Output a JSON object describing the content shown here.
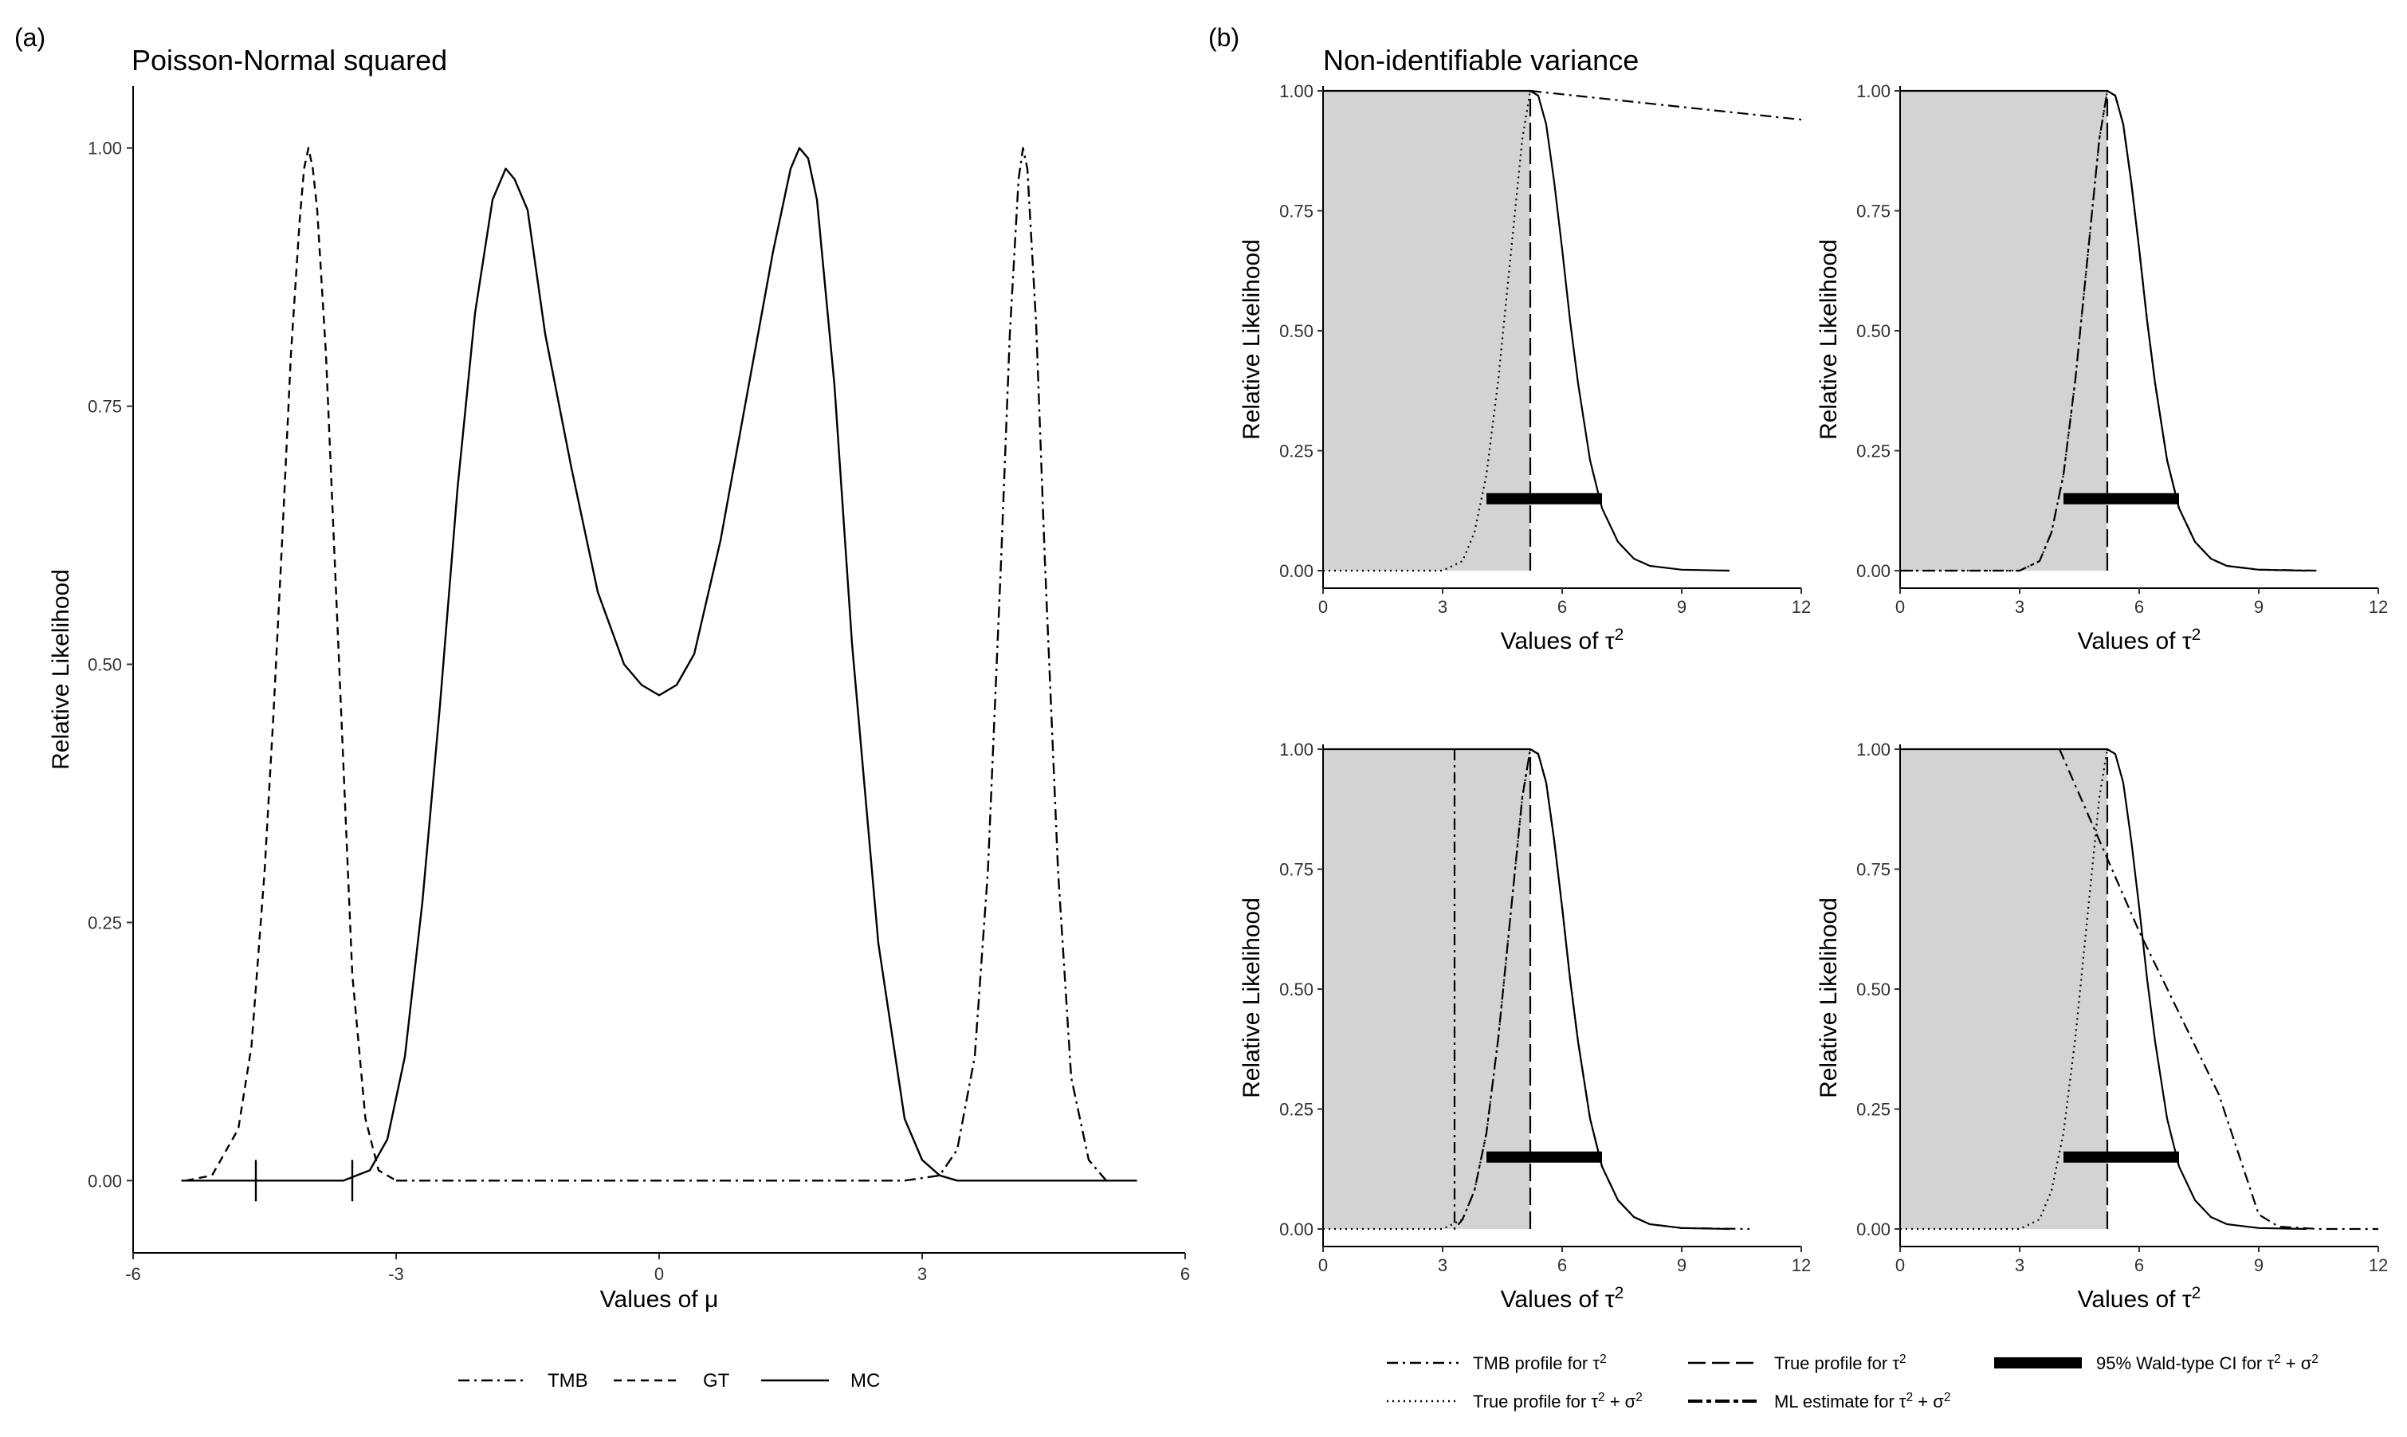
{
  "panel_a": {
    "tag": "(a)",
    "legend": [
      {
        "label": "TMB",
        "dash": "dotdash"
      },
      {
        "label": "GT",
        "dash": "dashed"
      },
      {
        "label": "MC",
        "dash": "solid"
      }
    ]
  },
  "panel_b": {
    "tag": "(b)",
    "title": "Non-identifiable variance",
    "legend": [
      {
        "label": "TMB profile for τ²",
        "dash": "dotdash"
      },
      {
        "label": "True profile for τ²",
        "dash": "longdash"
      },
      {
        "label": "95% Wald-type CI for τ² + σ²",
        "dash": "thick"
      },
      {
        "label": "True profile for τ² + σ²",
        "dash": "dotted"
      },
      {
        "label": "ML estimate for τ² + σ²",
        "dash": "twodash"
      }
    ]
  },
  "chart_data": [
    {
      "type": "line",
      "panel": "a",
      "title": "Poisson-Normal squared",
      "xlabel": "Values of μ",
      "ylabel": "Relative Likelihood",
      "xlim": [
        -6,
        6
      ],
      "ylim": [
        -0.07,
        1.06
      ],
      "xticks": [
        -6,
        -3,
        0,
        3,
        6
      ],
      "xtick_labels": [
        "-6",
        "-3",
        "0",
        "3",
        "6"
      ],
      "yticks": [
        0,
        0.25,
        0.5,
        0.75,
        1
      ],
      "ytick_labels": [
        "0.00",
        "0.25",
        "0.50",
        "0.75",
        "1.00"
      ],
      "series": [
        {
          "name": "TMB",
          "dash": "dotdash",
          "x": [
            -3.0,
            -1.0,
            1.0,
            2.8,
            3.2,
            3.4,
            3.6,
            3.75,
            3.9,
            4.0,
            4.1,
            4.15,
            4.2,
            4.3,
            4.4,
            4.55,
            4.7,
            4.9,
            5.1
          ],
          "y": [
            0,
            0,
            0,
            0,
            0.005,
            0.03,
            0.12,
            0.3,
            0.6,
            0.82,
            0.97,
            1.0,
            0.98,
            0.83,
            0.6,
            0.3,
            0.1,
            0.02,
            0
          ]
        },
        {
          "name": "GT",
          "dash": "dashed",
          "x": [
            -5.4,
            -5.1,
            -4.8,
            -4.65,
            -4.5,
            -4.4,
            -4.3,
            -4.2,
            -4.1,
            -4.05,
            -4.0,
            -3.95,
            -3.9,
            -3.8,
            -3.7,
            -3.6,
            -3.5,
            -3.35,
            -3.2,
            -3.0
          ],
          "y": [
            0,
            0.005,
            0.05,
            0.13,
            0.3,
            0.45,
            0.62,
            0.8,
            0.93,
            0.98,
            1.0,
            0.98,
            0.94,
            0.8,
            0.6,
            0.4,
            0.2,
            0.06,
            0.01,
            0
          ]
        },
        {
          "name": "MC",
          "dash": "solid",
          "x": [
            -5.45,
            -3.6,
            -3.3,
            -3.1,
            -2.9,
            -2.7,
            -2.5,
            -2.3,
            -2.1,
            -1.9,
            -1.75,
            -1.65,
            -1.5,
            -1.3,
            -1.0,
            -0.7,
            -0.4,
            -0.2,
            0,
            0.2,
            0.4,
            0.7,
            1.0,
            1.3,
            1.5,
            1.6,
            1.7,
            1.8,
            2.0,
            2.2,
            2.5,
            2.8,
            3.0,
            3.2,
            3.4,
            3.6,
            4.0,
            5.45
          ],
          "y": [
            0,
            0,
            0.01,
            0.04,
            0.12,
            0.27,
            0.46,
            0.67,
            0.84,
            0.95,
            0.98,
            0.97,
            0.94,
            0.82,
            0.69,
            0.57,
            0.5,
            0.48,
            0.47,
            0.48,
            0.51,
            0.62,
            0.76,
            0.9,
            0.98,
            1.0,
            0.99,
            0.95,
            0.77,
            0.52,
            0.23,
            0.06,
            0.02,
            0.005,
            0,
            0,
            0,
            0
          ]
        }
      ],
      "marks": [
        {
          "x": -4.6
        },
        {
          "x": -3.5
        }
      ]
    },
    {
      "type": "line",
      "panel": "b1",
      "xlabel": "Values of τ²",
      "ylabel": "Relative Likelihood",
      "xlim": [
        0,
        12
      ],
      "ylim": [
        0,
        1
      ],
      "xticks": [
        0,
        3,
        6,
        9,
        12
      ],
      "xtick_labels": [
        "0",
        "3",
        "6",
        "9",
        "12"
      ],
      "yticks": [
        0,
        0.25,
        0.5,
        0.75,
        1
      ],
      "ytick_labels": [
        "0.00",
        "0.25",
        "0.50",
        "0.75",
        "1.00"
      ],
      "shade": [
        0,
        5.2
      ],
      "series": [
        {
          "name": "TMB profile for τ²",
          "dash": "dotdash",
          "x": [
            5.2,
            12
          ],
          "y": [
            1.0,
            0.94
          ]
        },
        {
          "name": "True profile for τ² + σ²",
          "dash": "dotted",
          "x": [
            0,
            3.0,
            3.5,
            3.8,
            4.1,
            4.4,
            4.7,
            5.0,
            5.2
          ],
          "y": [
            0,
            0,
            0.02,
            0.08,
            0.2,
            0.4,
            0.65,
            0.9,
            1.0
          ]
        },
        {
          "name": "True profile for τ²",
          "dash": "solid",
          "x": [
            0,
            5.2,
            5.4,
            5.6,
            5.8,
            6.0,
            6.2,
            6.4,
            6.7,
            7.0,
            7.4,
            7.8,
            8.2,
            9.0,
            10.2
          ],
          "y": [
            1.0,
            1.0,
            0.99,
            0.93,
            0.81,
            0.67,
            0.52,
            0.39,
            0.23,
            0.13,
            0.06,
            0.025,
            0.01,
            0.002,
            0
          ]
        },
        {
          "name": "ML estimate for τ² + σ²",
          "dash": "longdash",
          "x": [
            5.2,
            5.2
          ],
          "y": [
            0,
            1.0
          ]
        }
      ],
      "ci": [
        4.1,
        7.0
      ],
      "ci_y": 0.15
    },
    {
      "type": "line",
      "panel": "b2",
      "xlabel": "Values of τ²",
      "ylabel": "Relative Likelihood",
      "xlim": [
        0,
        12
      ],
      "ylim": [
        0,
        1
      ],
      "xticks": [
        0,
        3,
        6,
        9,
        12
      ],
      "xtick_labels": [
        "0",
        "3",
        "6",
        "9",
        "12"
      ],
      "yticks": [
        0,
        0.25,
        0.5,
        0.75,
        1
      ],
      "ytick_labels": [
        "0.00",
        "0.25",
        "0.50",
        "0.75",
        "1.00"
      ],
      "shade": [
        0,
        5.2
      ],
      "series": [
        {
          "name": "TMB profile for τ²",
          "dash": "dotdash",
          "x": [
            0,
            3.0,
            3.5,
            3.8,
            4.1,
            4.4,
            4.7,
            5.0,
            5.2,
            5.4,
            5.6,
            5.8,
            6.0,
            6.2,
            6.4,
            6.7,
            7.0,
            7.4,
            7.8,
            8.2,
            9.0,
            10.5
          ],
          "y": [
            0,
            0,
            0.02,
            0.08,
            0.2,
            0.4,
            0.65,
            0.9,
            1.0,
            0.99,
            0.93,
            0.81,
            0.67,
            0.52,
            0.39,
            0.23,
            0.13,
            0.06,
            0.025,
            0.01,
            0.002,
            0
          ]
        },
        {
          "name": "True profile for τ² + σ²",
          "dash": "dotted",
          "x": [
            0,
            3.0,
            3.5,
            3.8,
            4.1,
            4.4,
            4.7,
            5.0,
            5.2
          ],
          "y": [
            0,
            0,
            0.02,
            0.08,
            0.2,
            0.4,
            0.65,
            0.9,
            1.0
          ]
        },
        {
          "name": "True profile for τ²",
          "dash": "solid",
          "x": [
            0,
            5.2,
            5.4,
            5.6,
            5.8,
            6.0,
            6.2,
            6.4,
            6.7,
            7.0,
            7.4,
            7.8,
            8.2,
            9.0,
            10.2
          ],
          "y": [
            1.0,
            1.0,
            0.99,
            0.93,
            0.81,
            0.67,
            0.52,
            0.39,
            0.23,
            0.13,
            0.06,
            0.025,
            0.01,
            0.002,
            0
          ]
        },
        {
          "name": "ML estimate for τ² + σ²",
          "dash": "longdash",
          "x": [
            5.2,
            5.2
          ],
          "y": [
            0,
            1.0
          ]
        }
      ],
      "ci": [
        4.1,
        7.0
      ],
      "ci_y": 0.15
    },
    {
      "type": "line",
      "panel": "b3",
      "xlabel": "Values of τ²",
      "ylabel": "Relative Likelihood",
      "xlim": [
        0,
        12
      ],
      "ylim": [
        0,
        1
      ],
      "xticks": [
        0,
        3,
        6,
        9,
        12
      ],
      "xtick_labels": [
        "0",
        "3",
        "6",
        "9",
        "12"
      ],
      "yticks": [
        0,
        0.25,
        0.5,
        0.75,
        1
      ],
      "ytick_labels": [
        "0.00",
        "0.25",
        "0.50",
        "0.75",
        "1.00"
      ],
      "shade": [
        0,
        5.2
      ],
      "series": [
        {
          "name": "TMB profile for τ²",
          "dash": "dotdash",
          "x": [
            3.3,
            3.3,
            3.5,
            3.8,
            4.1,
            4.4,
            4.7,
            5.0,
            5.2,
            5.4,
            5.6,
            5.8,
            6.0,
            6.2,
            6.4,
            6.7,
            7.0,
            7.4,
            7.8,
            8.2,
            9.0,
            10.7
          ],
          "y": [
            1.0,
            0,
            0.02,
            0.08,
            0.2,
            0.4,
            0.65,
            0.9,
            1.0,
            0.99,
            0.93,
            0.81,
            0.67,
            0.52,
            0.39,
            0.23,
            0.13,
            0.06,
            0.025,
            0.01,
            0.002,
            0
          ]
        },
        {
          "name": "True profile for τ² + σ²",
          "dash": "dotted",
          "x": [
            0,
            3.0,
            3.5,
            3.8,
            4.1,
            4.4,
            4.7,
            5.0,
            5.2
          ],
          "y": [
            0,
            0,
            0.02,
            0.08,
            0.2,
            0.4,
            0.65,
            0.9,
            1.0
          ]
        },
        {
          "name": "True profile for τ²",
          "dash": "solid",
          "x": [
            0,
            5.2,
            5.4,
            5.6,
            5.8,
            6.0,
            6.2,
            6.4,
            6.7,
            7.0,
            7.4,
            7.8,
            8.2,
            9.0,
            10.2
          ],
          "y": [
            1.0,
            1.0,
            0.99,
            0.93,
            0.81,
            0.67,
            0.52,
            0.39,
            0.23,
            0.13,
            0.06,
            0.025,
            0.01,
            0.002,
            0
          ]
        },
        {
          "name": "ML estimate for τ² + σ²",
          "dash": "longdash",
          "x": [
            5.2,
            5.2
          ],
          "y": [
            0,
            1.0
          ]
        }
      ],
      "ci": [
        4.1,
        7.0
      ],
      "ci_y": 0.15
    },
    {
      "type": "line",
      "panel": "b4",
      "xlabel": "Values of τ²",
      "ylabel": "Relative Likelihood",
      "xlim": [
        0,
        12
      ],
      "ylim": [
        0,
        1
      ],
      "xticks": [
        0,
        3,
        6,
        9,
        12
      ],
      "xtick_labels": [
        "0",
        "3",
        "6",
        "9",
        "12"
      ],
      "yticks": [
        0,
        0.25,
        0.5,
        0.75,
        1
      ],
      "ytick_labels": [
        "0.00",
        "0.25",
        "0.50",
        "0.75",
        "1.00"
      ],
      "shade": [
        0,
        5.2
      ],
      "series": [
        {
          "name": "TMB profile for τ²",
          "dash": "dotdash",
          "x": [
            4.0,
            6.0,
            8.0,
            9.0,
            9.5,
            10.5,
            12
          ],
          "y": [
            1.0,
            0.62,
            0.28,
            0.03,
            0.005,
            0,
            0
          ]
        },
        {
          "name": "True profile for τ² + σ²",
          "dash": "dotted",
          "x": [
            0,
            3.0,
            3.5,
            3.8,
            4.1,
            4.4,
            4.7,
            5.0,
            5.2
          ],
          "y": [
            0,
            0,
            0.02,
            0.08,
            0.2,
            0.4,
            0.65,
            0.9,
            1.0
          ]
        },
        {
          "name": "True profile for τ²",
          "dash": "solid",
          "x": [
            0,
            5.2,
            5.4,
            5.6,
            5.8,
            6.0,
            6.2,
            6.4,
            6.7,
            7.0,
            7.4,
            7.8,
            8.2,
            9.0,
            10.2
          ],
          "y": [
            1.0,
            1.0,
            0.99,
            0.93,
            0.81,
            0.67,
            0.52,
            0.39,
            0.23,
            0.13,
            0.06,
            0.025,
            0.01,
            0.002,
            0
          ]
        },
        {
          "name": "ML estimate for τ² + σ²",
          "dash": "longdash",
          "x": [
            5.2,
            5.2
          ],
          "y": [
            0,
            1.0
          ]
        }
      ],
      "ci": [
        4.1,
        7.0
      ],
      "ci_y": 0.15
    }
  ]
}
